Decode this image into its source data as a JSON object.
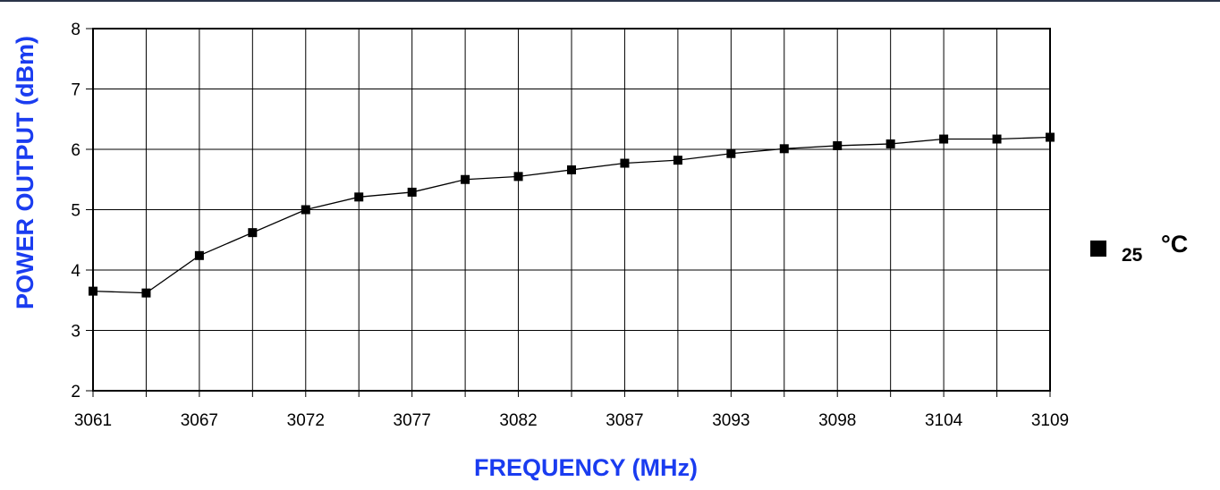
{
  "chart_data": {
    "type": "line",
    "title": "",
    "xlabel": "FREQUENCY (MHz)",
    "ylabel": "POWER OUTPUT (dBm)",
    "ylim": [
      2,
      8
    ],
    "yticks": [
      "2",
      "3",
      "4",
      "5",
      "6",
      "7",
      "8"
    ],
    "x_tick_labels": [
      "3061",
      "3067",
      "3072",
      "3077",
      "3082",
      "3087",
      "3093",
      "3098",
      "3104",
      "3109"
    ],
    "grid": true,
    "legend_position": "right",
    "series": [
      {
        "name": "25 °C",
        "legend_value": "25",
        "legend_unit": "°C",
        "marker": "square",
        "color": "#000000",
        "values": [
          3.65,
          3.62,
          4.24,
          4.62,
          5.0,
          5.21,
          5.29,
          5.5,
          5.55,
          5.66,
          5.77,
          5.82,
          5.93,
          6.01,
          6.06,
          6.09,
          6.17,
          6.17,
          6.2
        ]
      }
    ],
    "title_color": "#1a3cf0"
  }
}
